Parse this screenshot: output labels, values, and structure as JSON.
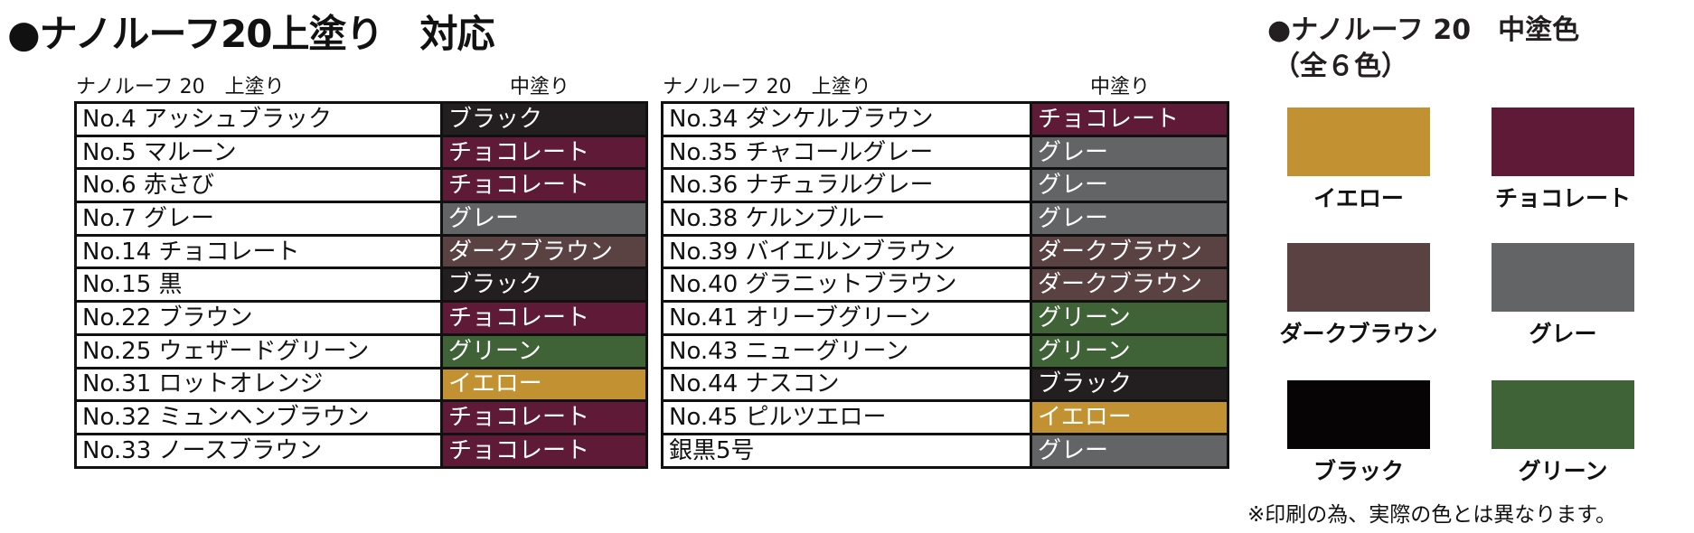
{
  "title": "●ナノルーフ20上塗り　対応",
  "tables": [
    {
      "header_top": "ナノルーフ 20　上塗り",
      "header_mid": "中塗り",
      "rows": [
        {
          "top": "No.4 アッシュブラック",
          "mid": "ブラック",
          "color": "#231f20"
        },
        {
          "top": "No.5 マルーン",
          "mid": "チョコレート",
          "color": "#5e1a36"
        },
        {
          "top": "No.6 赤さび",
          "mid": "チョコレート",
          "color": "#5e1a36"
        },
        {
          "top": "No.7 グレー",
          "mid": "グレー",
          "color": "#636466"
        },
        {
          "top": "No.14 チョコレート",
          "mid": "ダークブラウン",
          "color": "#5a4142"
        },
        {
          "top": "No.15 黒",
          "mid": "ブラック",
          "color": "#231f20"
        },
        {
          "top": "No.22 ブラウン",
          "mid": "チョコレート",
          "color": "#5e1a36"
        },
        {
          "top": "No.25 ウェザードグリーン",
          "mid": "グリーン",
          "color": "#3f6337"
        },
        {
          "top": "No.31 ロットオレンジ",
          "mid": "イエロー",
          "color": "#c29232"
        },
        {
          "top": "No.32 ミュンヘンブラウン",
          "mid": "チョコレート",
          "color": "#5e1a36"
        },
        {
          "top": "No.33 ノースブラウン",
          "mid": "チョコレート",
          "color": "#5e1a36"
        }
      ]
    },
    {
      "header_top": "ナノルーフ 20　上塗り",
      "header_mid": "中塗り",
      "rows": [
        {
          "top": "No.34 ダンケルブラウン",
          "mid": "チョコレート",
          "color": "#5e1a36"
        },
        {
          "top": "No.35 チャコールグレー",
          "mid": "グレー",
          "color": "#636466"
        },
        {
          "top": "No.36 ナチュラルグレー",
          "mid": "グレー",
          "color": "#636466"
        },
        {
          "top": "No.38 ケルンブルー",
          "mid": "グレー",
          "color": "#636466"
        },
        {
          "top": "No.39 バイエルンブラウン",
          "mid": "ダークブラウン",
          "color": "#5a4142"
        },
        {
          "top": "No.40 グラニットブラウン",
          "mid": "ダークブラウン",
          "color": "#5a4142"
        },
        {
          "top": "No.41 オリーブグリーン",
          "mid": "グリーン",
          "color": "#3f6337"
        },
        {
          "top": "No.43 ニューグリーン",
          "mid": "グリーン",
          "color": "#3f6337"
        },
        {
          "top": "No.44 ナスコン",
          "mid": "ブラック",
          "color": "#231f20"
        },
        {
          "top": "No.45 ピルツエロー",
          "mid": "イエロー",
          "color": "#c29232"
        },
        {
          "top": "銀黒5号",
          "mid": "グレー",
          "color": "#636466"
        }
      ]
    }
  ],
  "palette": {
    "title_line1": "●ナノルーフ 20　中塗色",
    "title_line2": "（全６色）",
    "swatches": [
      {
        "label": "イエロー",
        "color": "#c29232"
      },
      {
        "label": "チョコレート",
        "color": "#5e1a36"
      },
      {
        "label": "ダークブラウン",
        "color": "#5a4142"
      },
      {
        "label": "グレー",
        "color": "#636466"
      },
      {
        "label": "ブラック",
        "color": "#060405"
      },
      {
        "label": "グリーン",
        "color": "#3f6337"
      }
    ],
    "note": "※印刷の為、実際の色とは異なります。"
  }
}
